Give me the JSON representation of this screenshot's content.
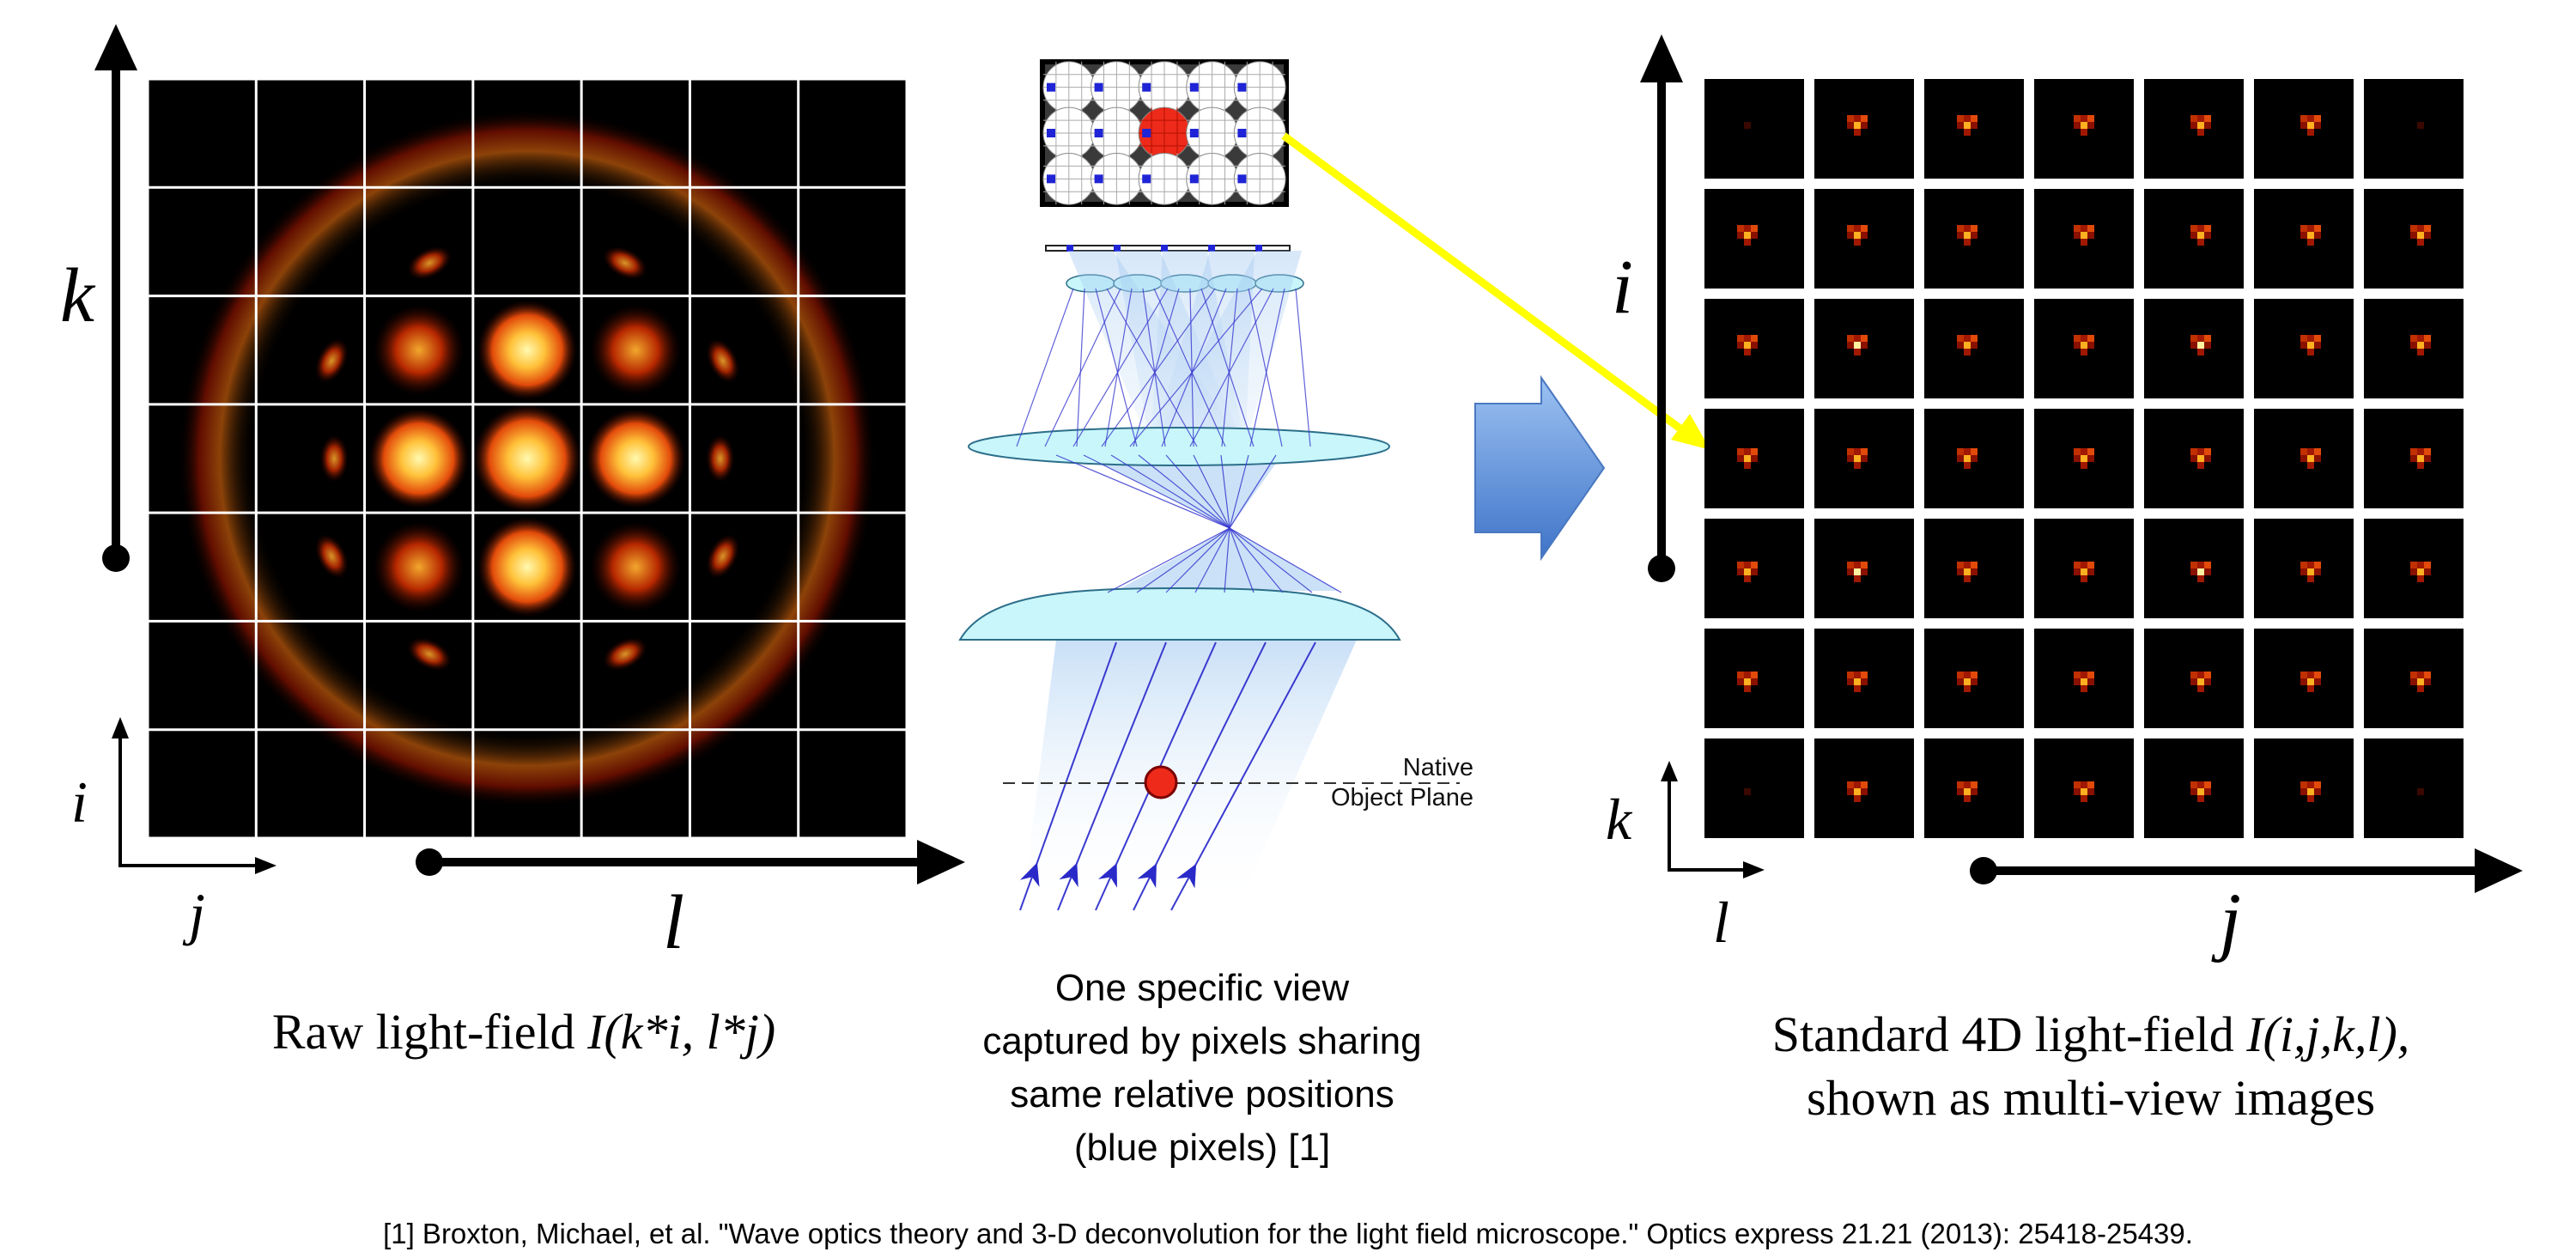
{
  "left_panel": {
    "axis_major_vertical": "k",
    "axis_minor_vertical": "i",
    "axis_minor_horizontal": "j",
    "axis_major_horizontal": "l",
    "caption_plain": "Raw light-field ",
    "caption_italic": "I(k*i, l*j)",
    "grid_rows": 7,
    "grid_cols": 7
  },
  "middle_panel": {
    "plane_label_line1": "Native",
    "plane_label_line2": "Object Plane",
    "caption_lines": [
      "One specific view",
      "captured by pixels sharing",
      "same relative positions",
      "(blue pixels) [1]"
    ]
  },
  "right_panel": {
    "axis_major_vertical": "i",
    "axis_minor_vertical": "k",
    "axis_minor_horizontal": "l",
    "axis_major_horizontal": "j",
    "caption_line1_plain": "Standard 4D light-field ",
    "caption_line1_italic": "I(i,j,k,l),",
    "caption_line2": "shown as multi-view images",
    "grid_rows": 7,
    "grid_cols": 7
  },
  "reference": "[1] Broxton, Michael, et al. \"Wave optics theory and 3-D deconvolution for the light field microscope.\" Optics express 21.21 (2013): 25418-25439.",
  "colors": {
    "glow_core": "#fff7a0",
    "glow_mid": "#ff9a1a",
    "glow_edge": "#c51b00",
    "lens_fill": "#c8f6fa",
    "ray_color": "#3a3ad0",
    "arrow_yellow": "#ffff00",
    "big_arrow_blue": "#5b8fd8",
    "red_dot": "#ee2a1a"
  }
}
